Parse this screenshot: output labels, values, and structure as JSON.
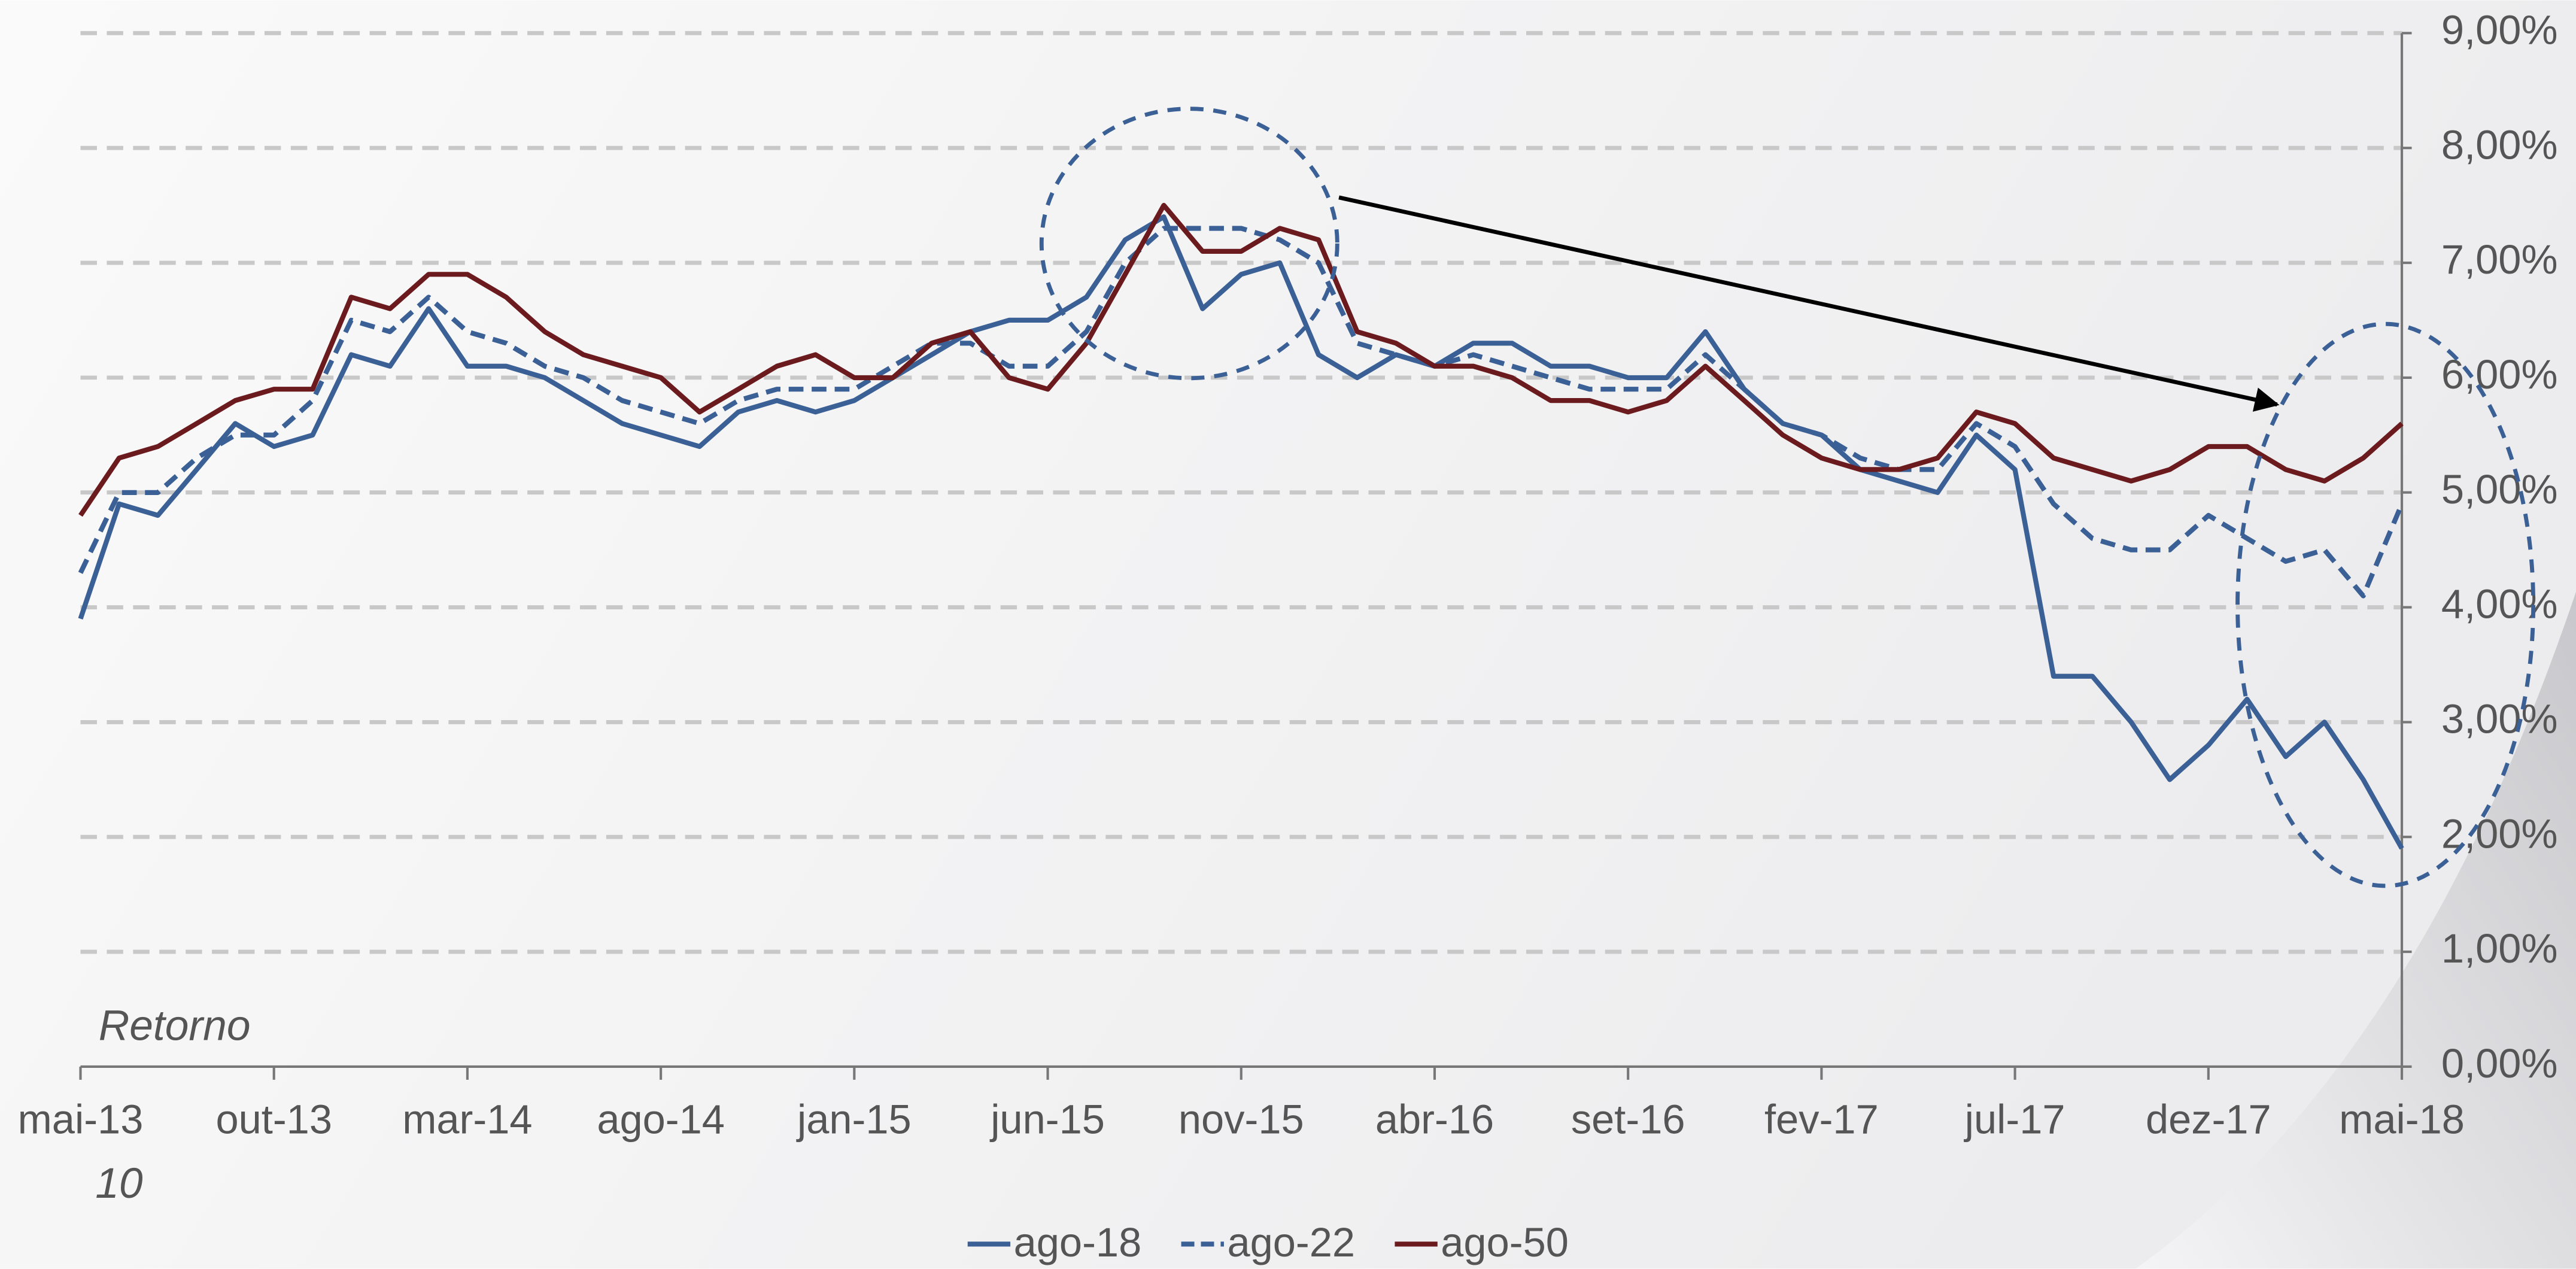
{
  "chart_data": {
    "type": "line",
    "annotations": [
      "Retorno",
      "10"
    ],
    "categories": [
      "mai-13",
      null,
      null,
      null,
      null,
      "out-13",
      null,
      null,
      null,
      null,
      "mar-14",
      null,
      null,
      null,
      null,
      "ago-14",
      null,
      null,
      null,
      null,
      "jan-15",
      null,
      null,
      null,
      null,
      "jun-15",
      null,
      null,
      null,
      null,
      "nov-15",
      null,
      null,
      null,
      null,
      "abr-16",
      null,
      null,
      null,
      null,
      "set-16",
      null,
      null,
      null,
      null,
      "fev-17",
      null,
      null,
      null,
      null,
      "jul-17",
      null,
      null,
      null,
      null,
      "dez-17",
      null,
      null,
      null,
      null,
      "mai-18"
    ],
    "series": [
      {
        "name": "ago-18",
        "color": "#3a6096",
        "dash": false,
        "values": [
          3.9,
          4.9,
          4.8,
          5.2,
          5.6,
          5.4,
          5.5,
          6.2,
          6.1,
          6.6,
          6.1,
          6.1,
          6.0,
          5.8,
          5.6,
          5.5,
          5.4,
          5.7,
          5.8,
          5.7,
          5.8,
          6.0,
          6.2,
          6.4,
          6.5,
          6.5,
          6.7,
          7.2,
          7.4,
          6.6,
          6.9,
          7.0,
          6.2,
          6.0,
          6.2,
          6.1,
          6.3,
          6.3,
          6.1,
          6.1,
          6.0,
          6.0,
          6.4,
          5.9,
          5.6,
          5.5,
          5.2,
          5.1,
          5.0,
          5.5,
          5.2,
          3.4,
          3.4,
          3.0,
          2.5,
          2.8,
          3.2,
          2.7,
          3.0,
          2.5,
          1.9
        ]
      },
      {
        "name": "ago-22",
        "color": "#3a6096",
        "dash": true,
        "values": [
          4.3,
          5.0,
          5.0,
          5.3,
          5.5,
          5.5,
          5.8,
          6.5,
          6.4,
          6.7,
          6.4,
          6.3,
          6.1,
          6.0,
          5.8,
          5.7,
          5.6,
          5.8,
          5.9,
          5.9,
          5.9,
          6.1,
          6.3,
          6.3,
          6.1,
          6.1,
          6.4,
          7.0,
          7.3,
          7.3,
          7.3,
          7.2,
          7.0,
          6.3,
          6.2,
          6.1,
          6.2,
          6.1,
          6.0,
          5.9,
          5.9,
          5.9,
          6.2,
          5.9,
          5.6,
          5.5,
          5.3,
          5.2,
          5.2,
          5.6,
          5.4,
          4.9,
          4.6,
          4.5,
          4.5,
          4.8,
          4.6,
          4.4,
          4.5,
          4.1,
          4.9
        ]
      },
      {
        "name": "ago-50",
        "color": "#6b1a1d",
        "dash": false,
        "values": [
          4.8,
          5.3,
          5.4,
          5.6,
          5.8,
          5.9,
          5.9,
          6.7,
          6.6,
          6.9,
          6.9,
          6.7,
          6.4,
          6.2,
          6.1,
          6.0,
          5.7,
          5.9,
          6.1,
          6.2,
          6.0,
          6.0,
          6.3,
          6.4,
          6.0,
          5.9,
          6.3,
          6.9,
          7.5,
          7.1,
          7.1,
          7.3,
          7.2,
          6.4,
          6.3,
          6.1,
          6.1,
          6.0,
          5.8,
          5.8,
          5.7,
          5.8,
          6.1,
          5.8,
          5.5,
          5.3,
          5.2,
          5.2,
          5.3,
          5.7,
          5.6,
          5.3,
          5.2,
          5.1,
          5.2,
          5.4,
          5.4,
          5.2,
          5.1,
          5.3,
          5.6
        ]
      }
    ],
    "ylim": [
      0,
      9
    ],
    "yticks": [
      {
        "value": 0,
        "label": "0,00%"
      },
      {
        "value": 1,
        "label": "1,00%"
      },
      {
        "value": 2,
        "label": "2,00%"
      },
      {
        "value": 3,
        "label": "3,00%"
      },
      {
        "value": 4,
        "label": "4,00%"
      },
      {
        "value": 5,
        "label": "5,00%"
      },
      {
        "value": 6,
        "label": "6,00%"
      },
      {
        "value": 7,
        "label": "7,00%"
      },
      {
        "value": 8,
        "label": "8,00%"
      },
      {
        "value": 9,
        "label": "9,00%"
      }
    ],
    "grid": true,
    "y_axis_side": "right",
    "legend": "bottom"
  }
}
